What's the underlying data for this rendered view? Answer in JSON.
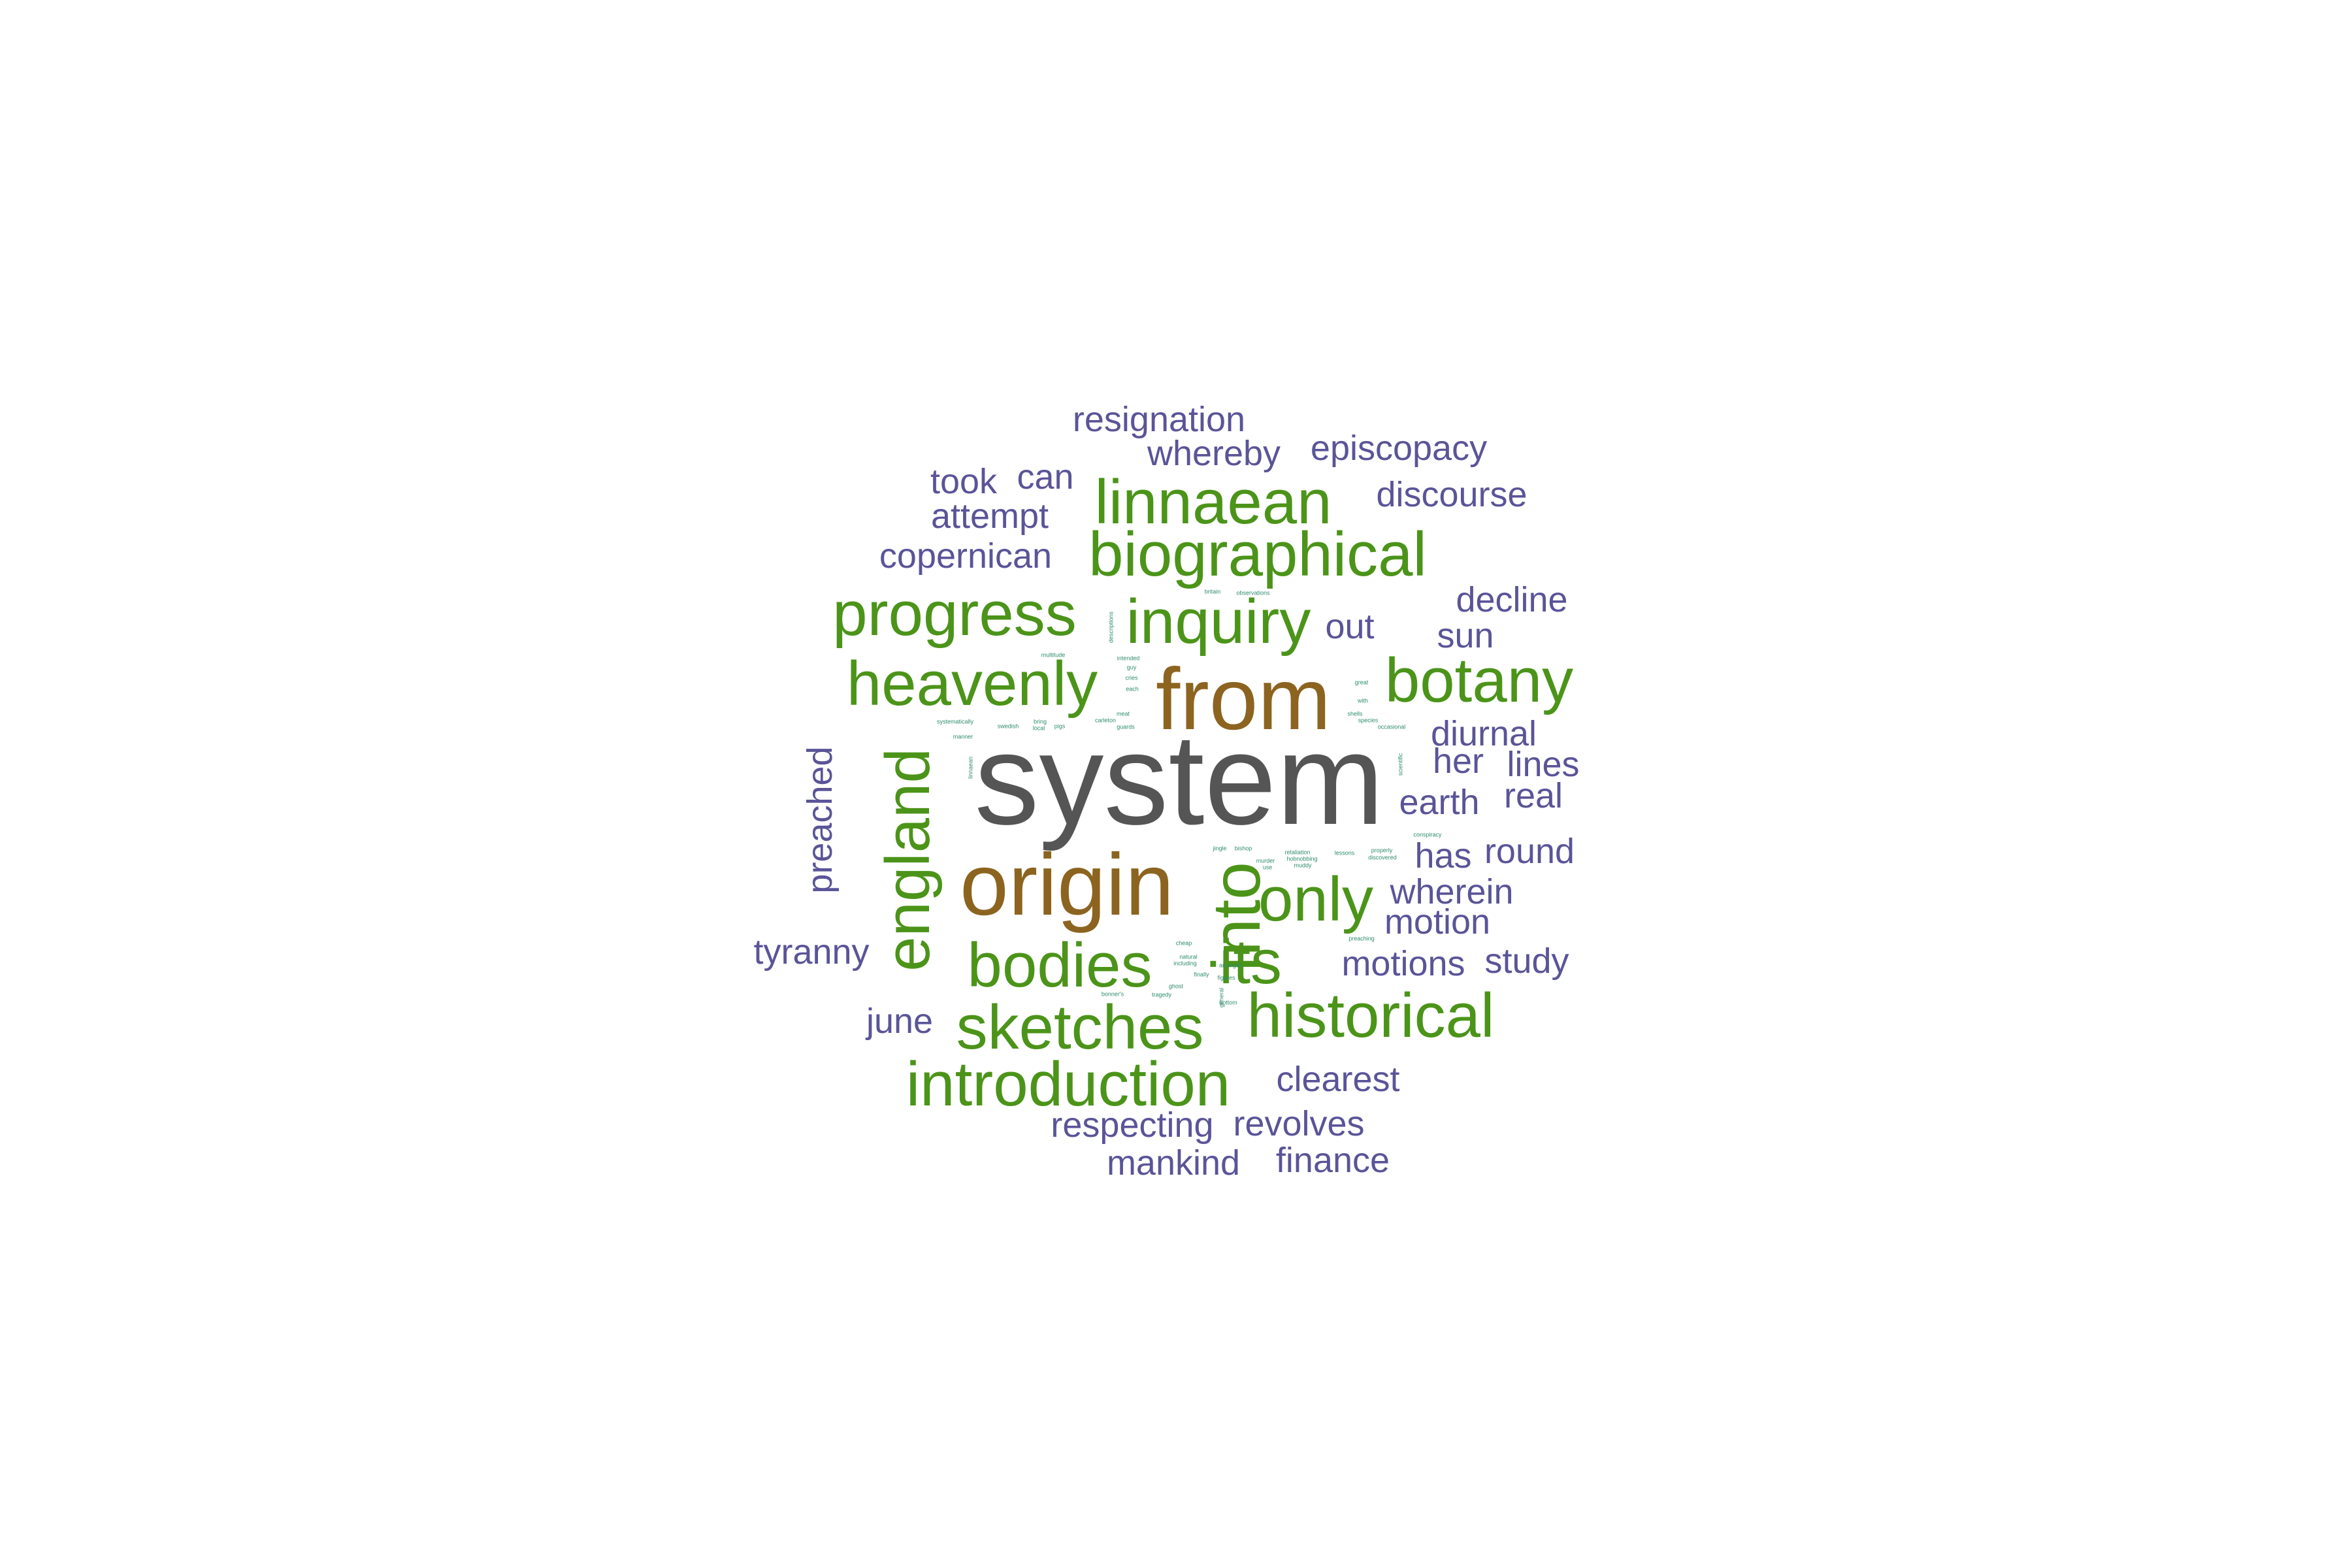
{
  "palette": {
    "gray": "#555555",
    "brown": "#8c6420",
    "green": "#4b9419",
    "purple": "#5a5498",
    "teal": "#2e8b6e"
  },
  "words": [
    {
      "text": "system",
      "color": "gray"
    },
    {
      "text": "from",
      "color": "brown"
    },
    {
      "text": "origin",
      "color": "brown"
    },
    {
      "text": "into",
      "color": "green"
    },
    {
      "text": "england",
      "color": "green"
    },
    {
      "text": "linnaean",
      "color": "green"
    },
    {
      "text": "biographical",
      "color": "green"
    },
    {
      "text": "progress",
      "color": "green"
    },
    {
      "text": "inquiry",
      "color": "green"
    },
    {
      "text": "heavenly",
      "color": "green"
    },
    {
      "text": "botany",
      "color": "green"
    },
    {
      "text": "only",
      "color": "green"
    },
    {
      "text": "its",
      "color": "green"
    },
    {
      "text": "bodies",
      "color": "green"
    },
    {
      "text": "historical",
      "color": "green"
    },
    {
      "text": "sketches",
      "color": "green"
    },
    {
      "text": "introduction",
      "color": "green"
    },
    {
      "text": "resignation",
      "color": "purple"
    },
    {
      "text": "whereby",
      "color": "purple"
    },
    {
      "text": "episcopacy",
      "color": "purple"
    },
    {
      "text": "took",
      "color": "purple"
    },
    {
      "text": "can",
      "color": "purple"
    },
    {
      "text": "discourse",
      "color": "purple"
    },
    {
      "text": "attempt",
      "color": "purple"
    },
    {
      "text": "copernican",
      "color": "purple"
    },
    {
      "text": "decline",
      "color": "purple"
    },
    {
      "text": "out",
      "color": "purple"
    },
    {
      "text": "sun",
      "color": "purple"
    },
    {
      "text": "diurnal",
      "color": "purple"
    },
    {
      "text": "her",
      "color": "purple"
    },
    {
      "text": "lines",
      "color": "purple"
    },
    {
      "text": "real",
      "color": "purple"
    },
    {
      "text": "earth",
      "color": "purple"
    },
    {
      "text": "preached",
      "color": "purple"
    },
    {
      "text": "has",
      "color": "purple"
    },
    {
      "text": "round",
      "color": "purple"
    },
    {
      "text": "wherein",
      "color": "purple"
    },
    {
      "text": "motion",
      "color": "purple"
    },
    {
      "text": "tyranny",
      "color": "purple"
    },
    {
      "text": "motions",
      "color": "purple"
    },
    {
      "text": "study",
      "color": "purple"
    },
    {
      "text": "june",
      "color": "purple"
    },
    {
      "text": "clearest",
      "color": "purple"
    },
    {
      "text": "respecting",
      "color": "purple"
    },
    {
      "text": "revolves",
      "color": "purple"
    },
    {
      "text": "mankind",
      "color": "purple"
    },
    {
      "text": "finance",
      "color": "purple"
    },
    {
      "text": "britain",
      "color": "teal"
    },
    {
      "text": "observations",
      "color": "teal"
    },
    {
      "text": "descriptions",
      "color": "teal"
    },
    {
      "text": "multitude",
      "color": "teal"
    },
    {
      "text": "intended",
      "color": "teal"
    },
    {
      "text": "guy",
      "color": "teal"
    },
    {
      "text": "cries",
      "color": "teal"
    },
    {
      "text": "each",
      "color": "teal"
    },
    {
      "text": "great",
      "color": "teal"
    },
    {
      "text": "with",
      "color": "teal"
    },
    {
      "text": "meat",
      "color": "teal"
    },
    {
      "text": "carleton",
      "color": "teal"
    },
    {
      "text": "guards",
      "color": "teal"
    },
    {
      "text": "shells",
      "color": "teal"
    },
    {
      "text": "species",
      "color": "teal"
    },
    {
      "text": "occasional",
      "color": "teal"
    },
    {
      "text": "systematically",
      "color": "teal"
    },
    {
      "text": "swedish",
      "color": "teal"
    },
    {
      "text": "bring",
      "color": "teal"
    },
    {
      "text": "local",
      "color": "teal"
    },
    {
      "text": "pigs",
      "color": "teal"
    },
    {
      "text": "manner",
      "color": "teal"
    },
    {
      "text": "linnaean",
      "color": "teal"
    },
    {
      "text": "scientific",
      "color": "teal"
    },
    {
      "text": "conspiracy",
      "color": "teal"
    },
    {
      "text": "jingle",
      "color": "teal"
    },
    {
      "text": "bishop",
      "color": "teal"
    },
    {
      "text": "murder",
      "color": "teal"
    },
    {
      "text": "use",
      "color": "teal"
    },
    {
      "text": "retaliation",
      "color": "teal"
    },
    {
      "text": "hobnobbing",
      "color": "teal"
    },
    {
      "text": "muddy",
      "color": "teal"
    },
    {
      "text": "lessons",
      "color": "teal"
    },
    {
      "text": "properly",
      "color": "teal"
    },
    {
      "text": "discovered",
      "color": "teal"
    },
    {
      "text": "preaching",
      "color": "teal"
    },
    {
      "text": "cheap",
      "color": "teal"
    },
    {
      "text": "natural",
      "color": "teal"
    },
    {
      "text": "including",
      "color": "teal"
    },
    {
      "text": "arranged",
      "color": "teal"
    },
    {
      "text": "finally",
      "color": "teal"
    },
    {
      "text": "figures",
      "color": "teal"
    },
    {
      "text": "ghost",
      "color": "teal"
    },
    {
      "text": "bonner's",
      "color": "teal"
    },
    {
      "text": "tragedy",
      "color": "teal"
    },
    {
      "text": "general",
      "color": "teal"
    },
    {
      "text": "bottom",
      "color": "teal"
    }
  ]
}
